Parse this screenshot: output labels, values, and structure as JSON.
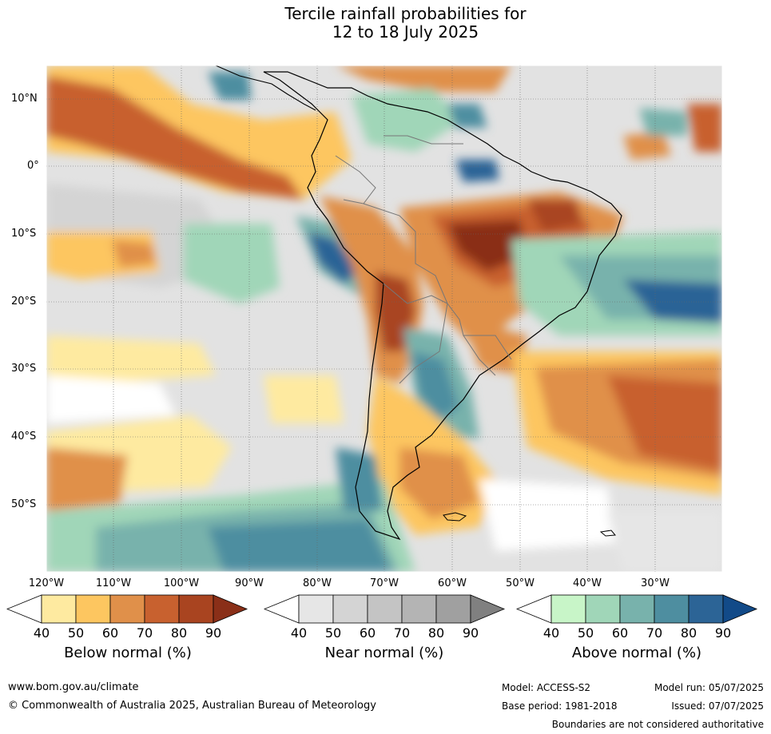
{
  "title": {
    "line1": "Tercile rainfall probabilities for",
    "line2": "12 to 18 July 2025"
  },
  "map": {
    "lat_labels": [
      "10°N",
      "0°",
      "10°S",
      "20°S",
      "30°S",
      "40°S",
      "50°S"
    ],
    "lon_labels": [
      "120°W",
      "110°W",
      "100°W",
      "90°W",
      "80°W",
      "70°W",
      "60°W",
      "50°W",
      "40°W",
      "30°W"
    ]
  },
  "legend": {
    "below": {
      "label": "Below normal (%)",
      "ticks": [
        "40",
        "50",
        "60",
        "70",
        "80",
        "90"
      ],
      "colors": [
        "#ffffff",
        "#feeaa0",
        "#fdc660",
        "#e0904a",
        "#c8612f",
        "#a94420",
        "#8a2f18"
      ]
    },
    "near": {
      "label": "Near normal (%)",
      "ticks": [
        "40",
        "50",
        "60",
        "70",
        "80",
        "90"
      ],
      "colors": [
        "#ffffff",
        "#e6e6e6",
        "#d4d4d4",
        "#c4c4c4",
        "#b4b4b4",
        "#a0a0a0",
        "#808080"
      ]
    },
    "above": {
      "label": "Above normal (%)",
      "ticks": [
        "40",
        "50",
        "60",
        "70",
        "80",
        "90"
      ],
      "colors": [
        "#ffffff",
        "#c8f5c8",
        "#a0d6b8",
        "#78b2ac",
        "#4e8ea0",
        "#2c6496",
        "#124a88"
      ]
    }
  },
  "footer": {
    "website": "www.bom.gov.au/climate",
    "copyright": "© Commonwealth of Australia 2025, Australian Bureau of Meteorology",
    "model": "Model: ACCESS-S2",
    "model_run": "Model run: 05/07/2025",
    "base_period": "Base period: 1981-2018",
    "issued": "Issued: 07/07/2025",
    "disclaimer": "Boundaries are not considered authoritative"
  }
}
